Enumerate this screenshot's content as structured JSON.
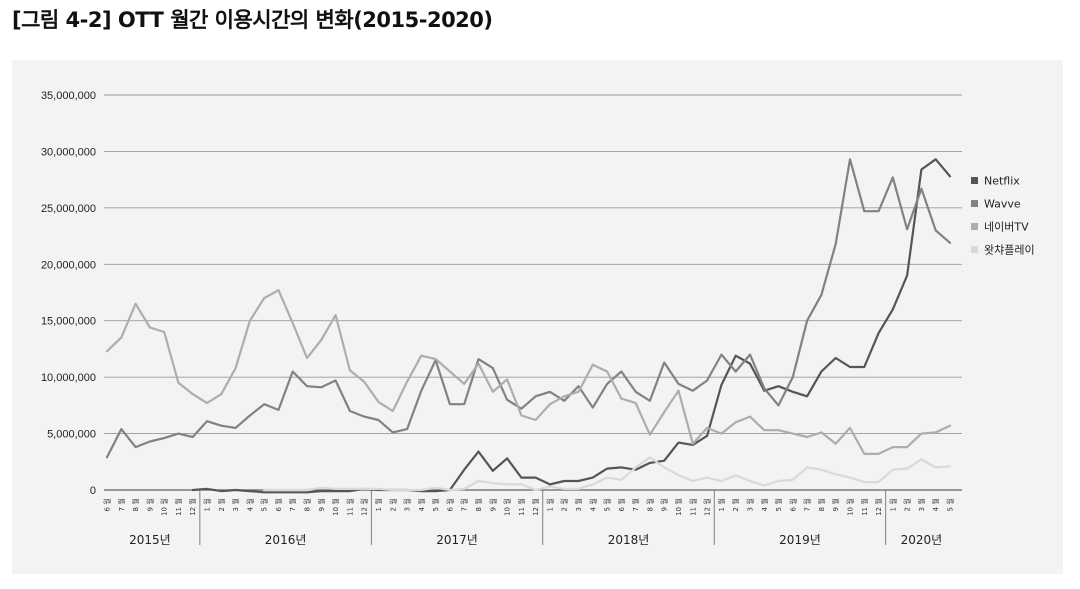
{
  "figure_title": "[그림 4-2] OTT 월간 이용시간의 변화(2015-2020)",
  "chart_data": {
    "type": "line",
    "title": "",
    "xlabel": "",
    "ylabel": "",
    "ylim": [
      0,
      35000000
    ],
    "y_ticks": [
      "0",
      "5,000,000",
      "10,000,000",
      "15,000,000",
      "20,000,000",
      "25,000,000",
      "30,000,000",
      "35,000,000"
    ],
    "grid": "horizontal",
    "legend_position": "right",
    "month_unit": "월",
    "x": [
      "6",
      "7",
      "8",
      "9",
      "10",
      "11",
      "12",
      "1",
      "2",
      "3",
      "4",
      "5",
      "6",
      "7",
      "8",
      "9",
      "10",
      "11",
      "12",
      "1",
      "2",
      "3",
      "4",
      "5",
      "6",
      "7",
      "8",
      "9",
      "10",
      "11",
      "12",
      "1",
      "2",
      "3",
      "4",
      "5",
      "6",
      "7",
      "8",
      "9",
      "10",
      "11",
      "12",
      "1",
      "2",
      "3",
      "4",
      "5",
      "6",
      "7",
      "8",
      "9",
      "10",
      "11",
      "12",
      "1",
      "2",
      "3",
      "4",
      "5"
    ],
    "year_groups": [
      {
        "label": "2015년",
        "start": 0,
        "count": 7
      },
      {
        "label": "2016년",
        "start": 7,
        "count": 12
      },
      {
        "label": "2017년",
        "start": 19,
        "count": 12
      },
      {
        "label": "2018년",
        "start": 31,
        "count": 12
      },
      {
        "label": "2019년",
        "start": 43,
        "count": 12
      },
      {
        "label": "2020년",
        "start": 55,
        "count": 5
      }
    ],
    "series": [
      {
        "name": "Netflix",
        "color": "#555555",
        "values": [
          null,
          null,
          null,
          null,
          null,
          null,
          0,
          100000,
          -100000,
          0,
          -100000,
          -200000,
          -200000,
          -200000,
          -200000,
          -100000,
          -100000,
          -100000,
          100000,
          0,
          0,
          0,
          -100000,
          -100000,
          0,
          1800000,
          3400000,
          1700000,
          2800000,
          1100000,
          1100000,
          500000,
          800000,
          800000,
          1100000,
          1900000,
          2000000,
          1800000,
          2400000,
          2600000,
          4200000,
          4000000,
          4800000,
          9300000,
          11900000,
          11200000,
          8800000,
          9200000,
          8700000,
          8300000,
          10500000,
          11700000,
          10900000,
          10900000,
          13900000,
          16000000,
          19000000,
          28400000,
          29300000,
          27800000
        ]
      },
      {
        "name": "Wavve",
        "color": "#828282",
        "values": [
          2900000,
          5400000,
          3800000,
          4300000,
          4600000,
          5000000,
          4700000,
          6100000,
          5700000,
          5500000,
          6600000,
          7600000,
          7100000,
          10500000,
          9200000,
          9100000,
          9700000,
          7000000,
          6500000,
          6200000,
          5100000,
          5400000,
          8800000,
          11500000,
          7600000,
          7600000,
          11600000,
          10800000,
          8000000,
          7200000,
          8300000,
          8700000,
          7900000,
          9200000,
          7300000,
          9400000,
          10500000,
          8700000,
          7900000,
          11300000,
          9400000,
          8800000,
          9700000,
          12000000,
          10500000,
          12000000,
          9000000,
          7500000,
          10000000,
          15000000,
          17300000,
          21800000,
          29300000,
          24700000,
          24700000,
          27700000,
          23100000,
          26700000,
          23000000,
          21900000
        ]
      },
      {
        "name": "네이버TV",
        "color": "#adadad",
        "values": [
          12300000,
          13500000,
          16500000,
          14400000,
          14000000,
          9500000,
          8500000,
          7700000,
          8500000,
          10800000,
          15000000,
          17000000,
          17700000,
          14800000,
          11700000,
          13300000,
          15500000,
          10600000,
          9600000,
          7800000,
          7000000,
          9600000,
          11900000,
          11600000,
          10500000,
          9400000,
          11200000,
          8700000,
          9800000,
          6600000,
          6200000,
          7600000,
          8300000,
          8700000,
          11100000,
          10500000,
          8100000,
          7700000,
          4900000,
          6900000,
          8800000,
          4100000,
          5500000,
          5000000,
          6000000,
          6500000,
          5300000,
          5300000,
          5000000,
          4700000,
          5100000,
          4100000,
          5500000,
          3200000,
          3200000,
          3800000,
          3800000,
          5000000,
          5100000,
          5700000
        ]
      },
      {
        "name": "왓챠플레이",
        "color": "#d9d9d9",
        "values": [
          null,
          null,
          null,
          null,
          null,
          null,
          null,
          null,
          null,
          null,
          null,
          0,
          0,
          0,
          0,
          200000,
          100000,
          100000,
          100000,
          100000,
          0,
          0,
          0,
          200000,
          0,
          100000,
          800000,
          600000,
          500000,
          500000,
          0,
          300000,
          100000,
          100000,
          500000,
          1100000,
          900000,
          2000000,
          2900000,
          2000000,
          1300000,
          800000,
          1100000,
          800000,
          1300000,
          800000,
          400000,
          800000,
          900000,
          2000000,
          1800000,
          1400000,
          1100000,
          700000,
          700000,
          1800000,
          1900000,
          2700000,
          2000000,
          2100000
        ]
      }
    ]
  }
}
